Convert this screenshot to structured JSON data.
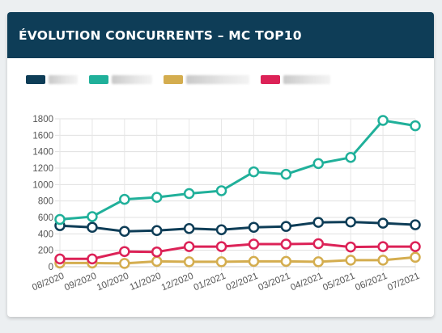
{
  "card": {
    "title": "ÉVOLUTION CONCURRENTS – MC TOP10"
  },
  "colors": {
    "header_bg": "#0e3d57",
    "grid": "#e0e0e0"
  },
  "chart_data": {
    "type": "line",
    "title": "ÉVOLUTION CONCURRENTS – MC TOP10",
    "xlabel": "",
    "ylabel": "",
    "categories": [
      "08/2020",
      "09/2020",
      "10/2020",
      "11/2020",
      "12/2020",
      "01/2021",
      "02/2021",
      "03/2021",
      "04/2021",
      "05/2021",
      "06/2021",
      "07/2021"
    ],
    "ylim": [
      0,
      1800
    ],
    "yticks": [
      0,
      200,
      400,
      600,
      800,
      1000,
      1200,
      1400,
      1600,
      1800
    ],
    "grid": true,
    "legend_position": "top-left",
    "series": [
      {
        "color": "#0e3d57",
        "values": [
          500,
          480,
          430,
          440,
          465,
          450,
          480,
          490,
          540,
          545,
          530,
          510
        ]
      },
      {
        "color": "#20b09a",
        "values": [
          575,
          610,
          820,
          845,
          890,
          925,
          1155,
          1125,
          1255,
          1330,
          1780,
          1715
        ]
      },
      {
        "color": "#d4ad4f",
        "values": [
          45,
          45,
          40,
          65,
          60,
          60,
          65,
          65,
          60,
          80,
          80,
          115
        ]
      },
      {
        "color": "#dc2257",
        "values": [
          95,
          95,
          185,
          180,
          245,
          245,
          275,
          275,
          280,
          240,
          245,
          245
        ]
      }
    ]
  }
}
